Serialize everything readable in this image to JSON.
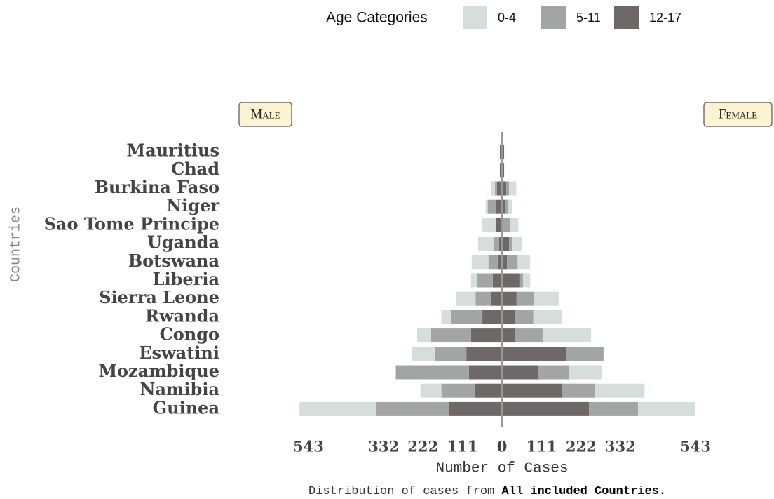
{
  "chart_data": {
    "type": "pyramid",
    "legend_title": "Age Categories",
    "categories": [
      "Mauritius",
      "Chad",
      "Burkina Faso",
      "Niger",
      "Sao Tome Principe",
      "Uganda",
      "Botswana",
      "Liberia",
      "Sierra Leone",
      "Rwanda",
      "Congo",
      "Eswatini",
      "Mozambique",
      "Namibia",
      "Guinea"
    ],
    "groups": [
      {
        "name": "Male",
        "side": "left",
        "series": [
          {
            "name": "0-4",
            "color": "#d5dedb",
            "values": [
              0,
              0,
              10,
              6,
              37,
              43,
              47,
              18,
              55,
              26,
              39,
              63,
              0,
              59,
              215
            ]
          },
          {
            "name": "5-11",
            "color": "#a3a5a4",
            "values": [
              0,
              0,
              6,
              24,
              0,
              16,
              26,
              43,
              43,
              89,
              112,
              89,
              205,
              93,
              205
            ]
          },
          {
            "name": "12-17",
            "color": "#6e6868",
            "values": [
              6,
              6,
              14,
              16,
              18,
              8,
              12,
              26,
              31,
              55,
              87,
              100,
              93,
              77,
              148
            ]
          }
        ]
      },
      {
        "name": "Female",
        "side": "right",
        "series": [
          {
            "name": "0-4",
            "color": "#d5dedb",
            "values": [
              0,
              0,
              20,
              12,
              22,
              28,
              35,
              20,
              69,
              81,
              136,
              0,
              94,
              140,
              161
            ]
          },
          {
            "name": "5-11",
            "color": "#a3a5a4",
            "values": [
              0,
              0,
              8,
              8,
              20,
              8,
              30,
              10,
              49,
              51,
              77,
              104,
              85,
              91,
              138
            ]
          },
          {
            "name": "12-17",
            "color": "#6e6868",
            "values": [
              6,
              6,
              12,
              8,
              4,
              20,
              14,
              49,
              41,
              37,
              37,
              181,
              102,
              169,
              244
            ]
          }
        ]
      }
    ],
    "xlim": [
      -600,
      600
    ],
    "xticks": [
      {
        "value": -543,
        "label": "543"
      },
      {
        "value": -332,
        "label": "332"
      },
      {
        "value": -222,
        "label": "222"
      },
      {
        "value": -111,
        "label": "111"
      },
      0,
      111,
      222,
      332,
      543
    ],
    "x_label": "Number of Cases",
    "y_label": "Countries",
    "caption": "Distribution of cases from",
    "caption_emphasis": "All included Countries."
  }
}
